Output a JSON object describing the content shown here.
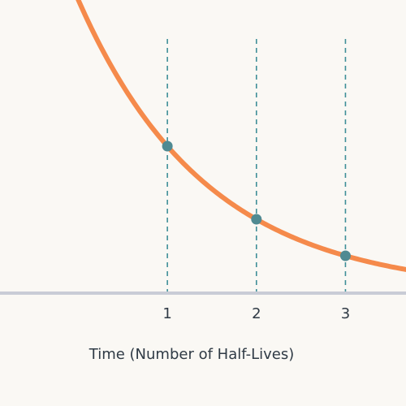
{
  "chart_data": {
    "type": "line",
    "title": "",
    "xlabel": "Time (Number of Half-Lives)",
    "ylabel": "",
    "xlim": [
      -0.88,
      3.68
    ],
    "ylim": [
      0,
      1
    ],
    "x_ticks": [
      1,
      2,
      3
    ],
    "x_tick_labels": [
      "1",
      "2",
      "3"
    ],
    "guide_lines": [
      1,
      2,
      3
    ],
    "series": [
      {
        "function": "y = 0.5^x",
        "x_range": [
          -0.88,
          3.68
        ],
        "points": [
          {
            "x": 1,
            "y": 0.5
          },
          {
            "x": 2,
            "y": 0.25
          },
          {
            "x": 3,
            "y": 0.125
          }
        ]
      }
    ],
    "grid": false,
    "legend": "none"
  },
  "colors": {
    "curve": "#f58a4b",
    "point": "#4f8a92",
    "guide": "#3f8f98",
    "axis": "#c9ccd6",
    "text": "#2f3a45",
    "background": "#faf8f4"
  }
}
